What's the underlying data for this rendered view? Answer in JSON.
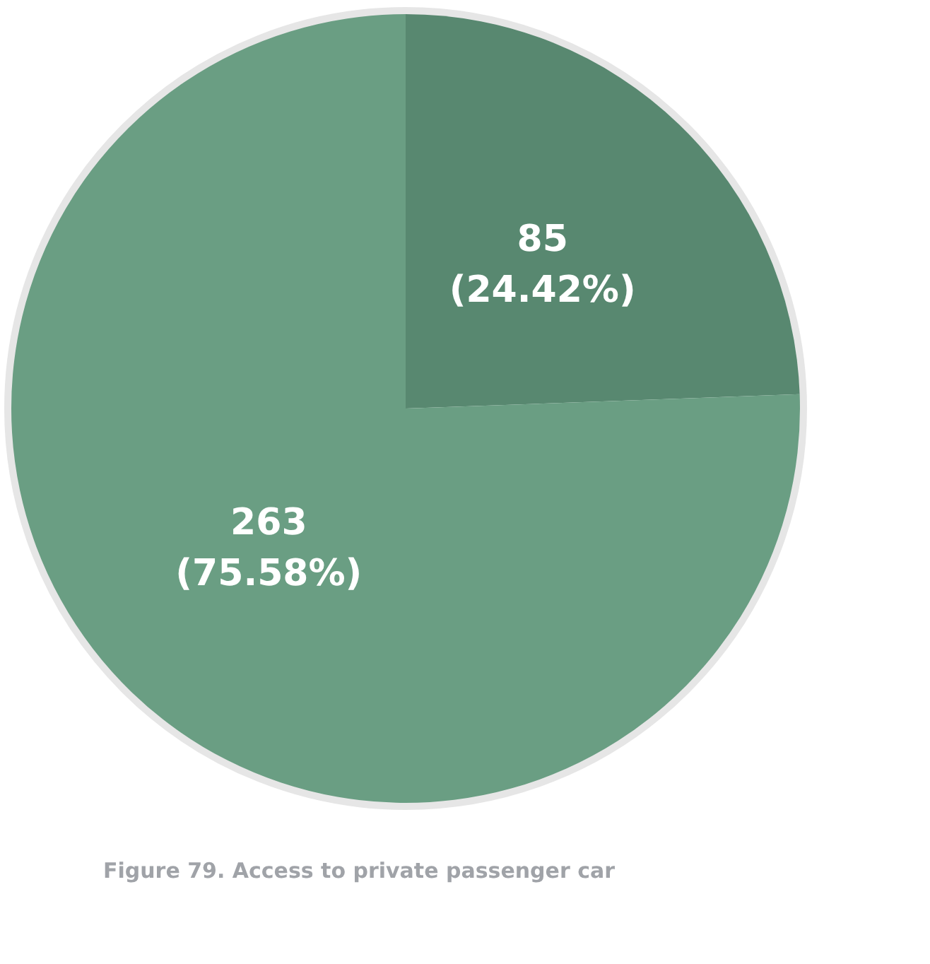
{
  "chart_data": {
    "type": "pie",
    "categories": [
      null,
      null
    ],
    "values": [
      85,
      263
    ],
    "colors": [
      "#588870",
      "#6a9e83"
    ],
    "value_labels": [
      "85\n(24.42%)",
      "263\n(75.58%)"
    ],
    "legend": false,
    "annotations": [
      "Figure 79. Access to private passenger car"
    ]
  }
}
